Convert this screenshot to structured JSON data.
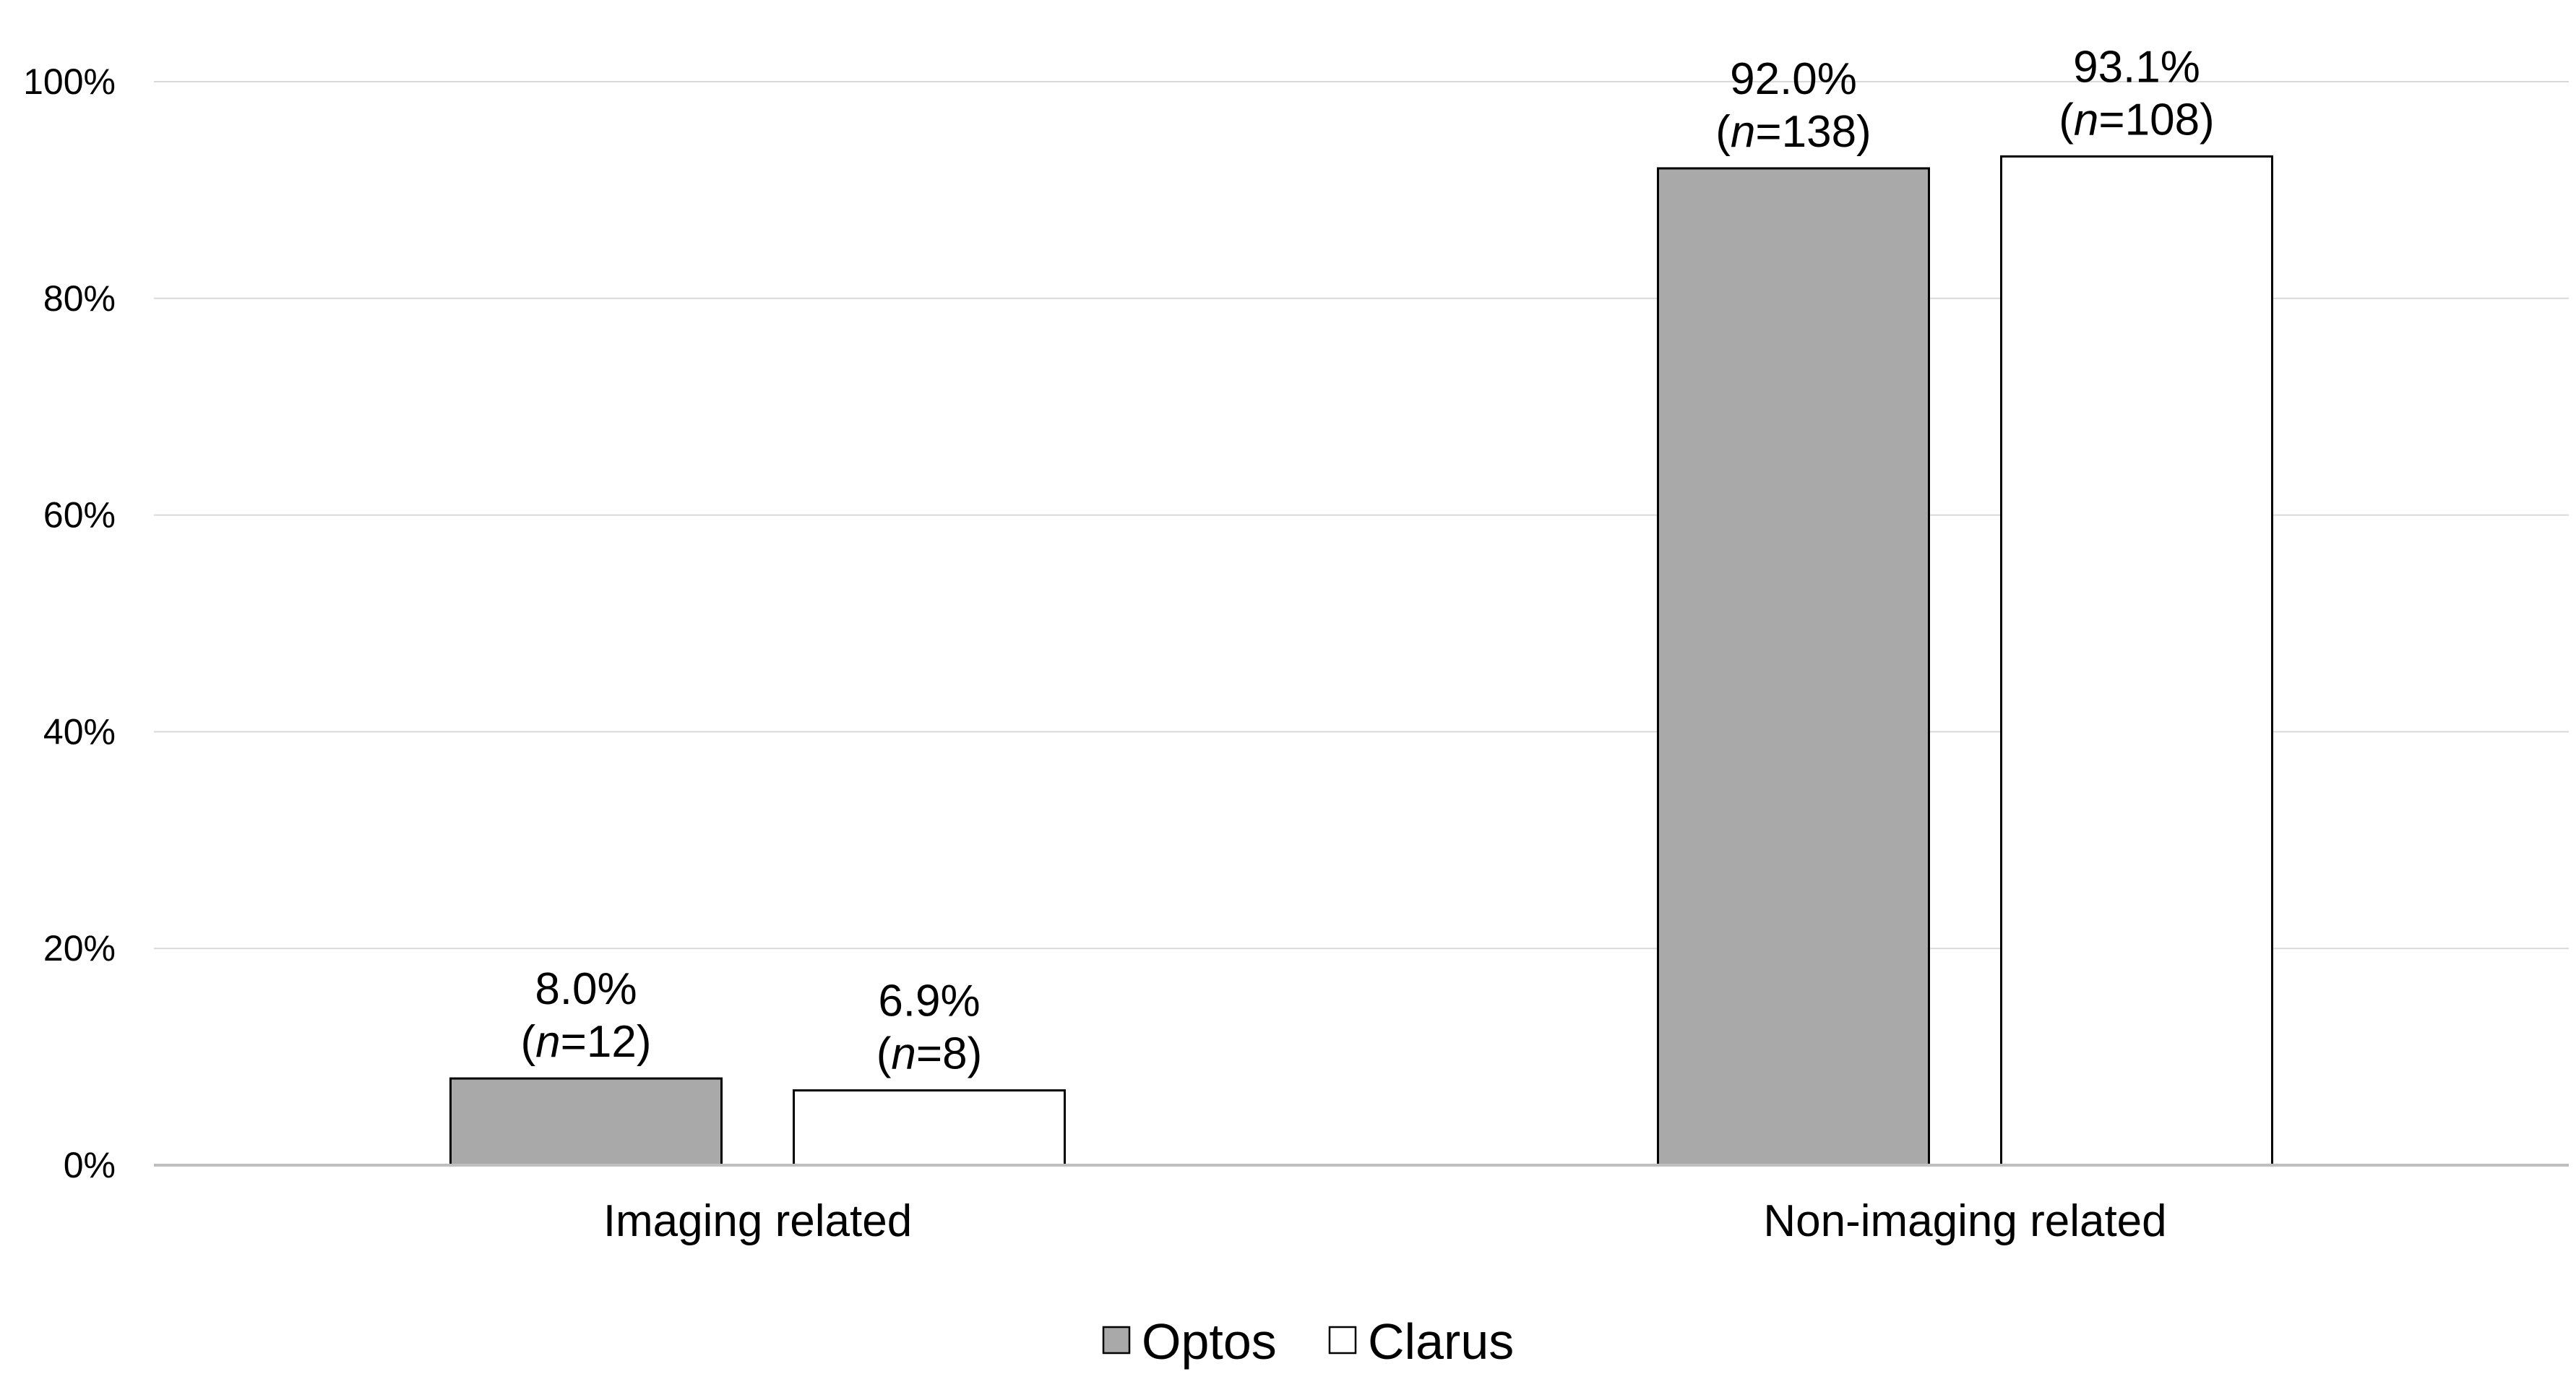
{
  "chart_data": {
    "type": "bar",
    "categories": [
      "Imaging related",
      "Non-imaging related"
    ],
    "series": [
      {
        "name": "Optos",
        "values": [
          8.0,
          92.0
        ],
        "labels": [
          {
            "pct": "8.0%",
            "n_open": "(",
            "n_italic": "n",
            "n_rest": "=12)"
          },
          {
            "pct": "92.0%",
            "n_open": "(",
            "n_italic": "n",
            "n_rest": "=138)"
          }
        ]
      },
      {
        "name": "Clarus",
        "values": [
          6.9,
          93.1
        ],
        "labels": [
          {
            "pct": "6.9%",
            "n_open": "(",
            "n_italic": "n",
            "n_rest": "=8)"
          },
          {
            "pct": "93.1%",
            "n_open": "(",
            "n_italic": "n",
            "n_rest": "=108)"
          }
        ]
      }
    ],
    "yticks": [
      "0%",
      "20%",
      "40%",
      "60%",
      "80%",
      "100%"
    ],
    "ylim": [
      0,
      100
    ],
    "grid": true,
    "legend_position": "bottom-center",
    "colors": {
      "Optos": "#a9a9a9",
      "Clarus": "#ffffff",
      "bar_border": "#000000",
      "grid": "#d9d9d9",
      "axis": "#bfbfbf"
    }
  }
}
